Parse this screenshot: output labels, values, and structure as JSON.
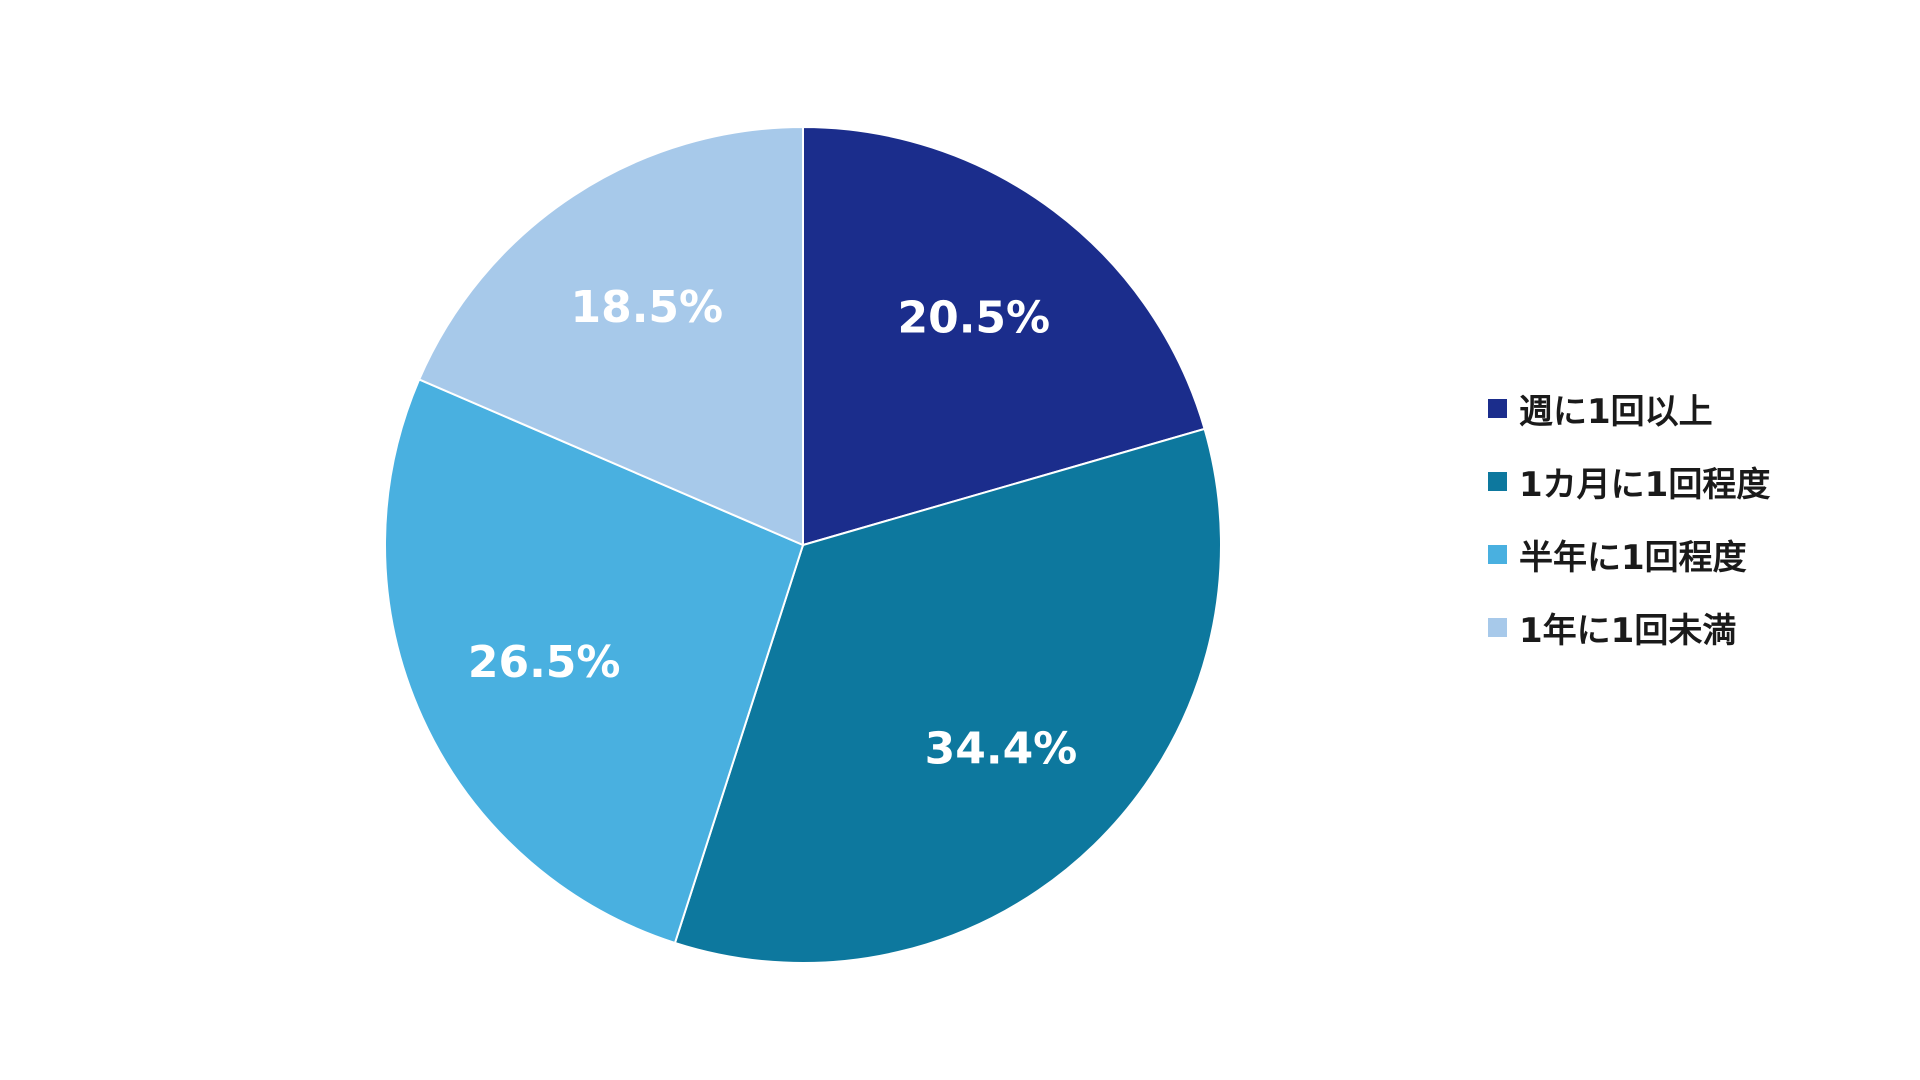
{
  "chart_data": {
    "type": "pie",
    "start_angle_deg": 0,
    "direction": "clockwise",
    "legend_position": "right",
    "slices": [
      {
        "label": "週に1回以上",
        "value": 20.5,
        "value_label": "20.5%",
        "color": "#1b2d8c"
      },
      {
        "label": "1カ月に1回程度",
        "value": 34.4,
        "value_label": "34.4%",
        "color": "#0d789e"
      },
      {
        "label": "半年に1回程度",
        "value": 26.5,
        "value_label": "26.5%",
        "color": "#49b0e0"
      },
      {
        "label": "1年に1回未満",
        "value": 18.5,
        "value_label": "18.5%",
        "color": "#a7c9ea"
      }
    ]
  }
}
